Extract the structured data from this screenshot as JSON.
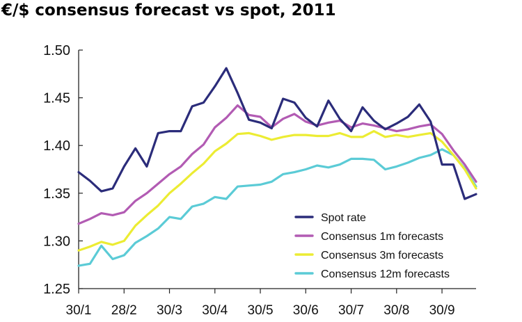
{
  "chart_data": {
    "type": "line",
    "title": "€/$ consensus forecast vs spot, 2011",
    "xlabel": "",
    "ylabel": "",
    "ylim": [
      1.25,
      1.5
    ],
    "yticks": [
      "1.25",
      "1.30",
      "1.35",
      "1.40",
      "1.45",
      "1.50"
    ],
    "ytick_values": [
      1.25,
      1.3,
      1.35,
      1.4,
      1.45,
      1.5
    ],
    "xticks": [
      "30/1",
      "28/2",
      "30/3",
      "30/4",
      "30/5",
      "30/6",
      "30/7",
      "30/8",
      "30/9"
    ],
    "xtick_index": [
      0,
      4,
      8,
      12,
      16,
      20,
      24,
      28,
      32
    ],
    "legend_position": "bottom-right",
    "series": [
      {
        "name": "Spot rate",
        "color": "#2b2c7a",
        "values": [
          1.372,
          1.363,
          1.352,
          1.355,
          1.378,
          1.397,
          1.378,
          1.413,
          1.415,
          1.415,
          1.441,
          1.445,
          1.462,
          1.481,
          1.455,
          1.427,
          1.424,
          1.418,
          1.449,
          1.445,
          1.429,
          1.42,
          1.447,
          1.428,
          1.415,
          1.44,
          1.426,
          1.417,
          1.423,
          1.43,
          1.443,
          1.425,
          1.38,
          1.38,
          1.344,
          1.349
        ]
      },
      {
        "name": "Consensus 1m forecasts",
        "color": "#b25bb3",
        "values": [
          1.318,
          1.323,
          1.329,
          1.327,
          1.33,
          1.342,
          1.35,
          1.36,
          1.37,
          1.378,
          1.391,
          1.401,
          1.419,
          1.429,
          1.442,
          1.432,
          1.43,
          1.419,
          1.428,
          1.433,
          1.425,
          1.421,
          1.424,
          1.426,
          1.419,
          1.423,
          1.421,
          1.418,
          1.415,
          1.417,
          1.42,
          1.422,
          1.412,
          1.395,
          1.38,
          1.362
        ]
      },
      {
        "name": "Consensus 3m forecasts",
        "color": "#ecec33",
        "values": [
          1.29,
          1.294,
          1.299,
          1.296,
          1.3,
          1.316,
          1.327,
          1.337,
          1.35,
          1.36,
          1.371,
          1.381,
          1.394,
          1.402,
          1.412,
          1.413,
          1.41,
          1.406,
          1.409,
          1.411,
          1.411,
          1.41,
          1.41,
          1.413,
          1.409,
          1.409,
          1.415,
          1.409,
          1.411,
          1.409,
          1.411,
          1.413,
          1.404,
          1.39,
          1.375,
          1.355
        ]
      },
      {
        "name": "Consensus 12m forecasts",
        "color": "#5bcbd6",
        "values": [
          1.274,
          1.276,
          1.295,
          1.281,
          1.285,
          1.298,
          1.305,
          1.313,
          1.325,
          1.323,
          1.336,
          1.339,
          1.346,
          1.344,
          1.357,
          1.358,
          1.359,
          1.362,
          1.37,
          1.372,
          1.375,
          1.379,
          1.377,
          1.38,
          1.386,
          1.386,
          1.385,
          1.375,
          1.378,
          1.382,
          1.387,
          1.39,
          1.396,
          1.39,
          1.376,
          1.357
        ]
      }
    ]
  }
}
